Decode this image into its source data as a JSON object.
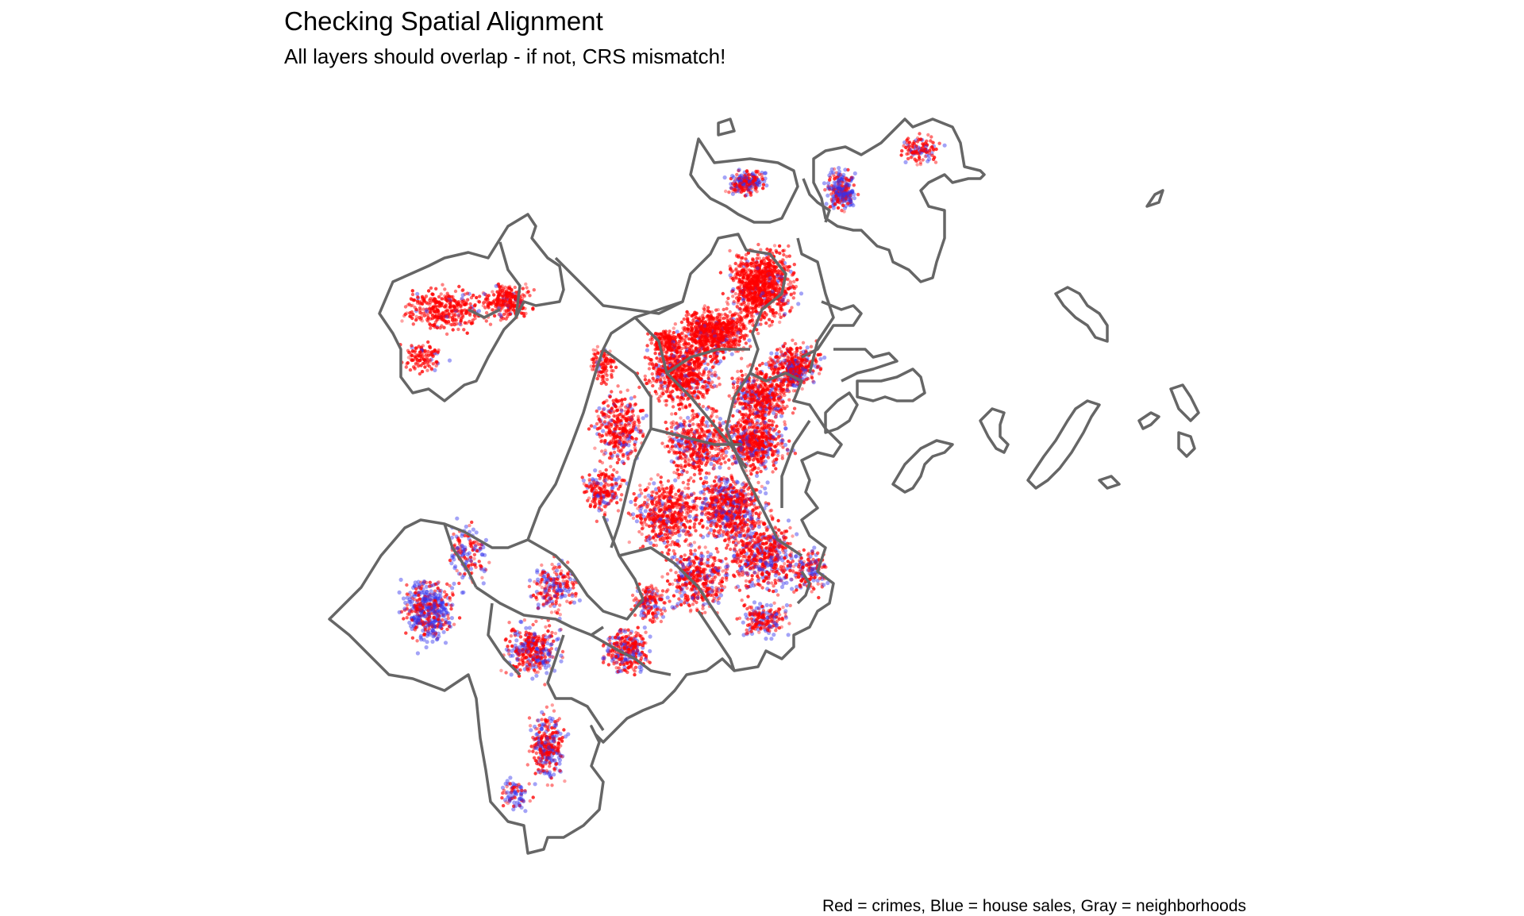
{
  "title": "Checking Spatial Alignment",
  "subtitle": "All layers should overlap - if not, CRS mismatch!",
  "caption": "Red = crimes, Blue = house sales, Gray = neighborhoods",
  "colors": {
    "crimes": "#ff0000",
    "house_sales": "#3333ee",
    "neighborhoods": "#666666",
    "background": "#ffffff"
  },
  "layers": [
    {
      "name": "neighborhoods",
      "geometry": "polygon outline",
      "color": "gray"
    },
    {
      "name": "crimes",
      "geometry": "points",
      "color": "red"
    },
    {
      "name": "house sales",
      "geometry": "points",
      "color": "blue"
    }
  ]
}
